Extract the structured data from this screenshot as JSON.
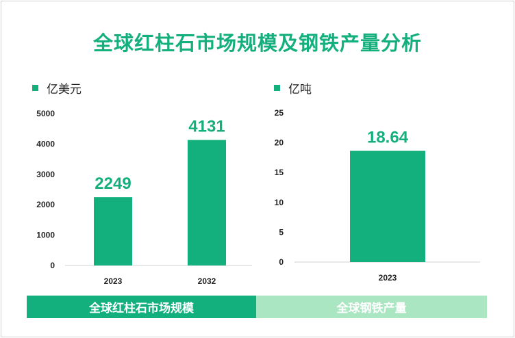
{
  "title": "全球红柱石市场规模及钢铁产量分析",
  "colors": {
    "accent": "#13b07d",
    "accent_light": "#abe6c3"
  },
  "chart_data": [
    {
      "type": "bar",
      "unit_label": "亿美元",
      "categories": [
        "2023",
        "2032"
      ],
      "values": [
        2249,
        4131
      ],
      "data_labels": [
        "2249",
        "4131"
      ],
      "yticks": [
        "0",
        "1000",
        "2000",
        "3000",
        "4000",
        "5000"
      ],
      "ylim": [
        0,
        5000
      ],
      "grid": false,
      "footer": "全球红柱石市场规模"
    },
    {
      "type": "bar",
      "unit_label": "亿吨",
      "categories": [
        "2023"
      ],
      "values": [
        18.64
      ],
      "data_labels": [
        "18.64"
      ],
      "yticks": [
        "0",
        "5",
        "10",
        "15",
        "20",
        "25"
      ],
      "ylim": [
        0,
        25
      ],
      "grid": false,
      "footer": "全球钢铁产量"
    }
  ]
}
